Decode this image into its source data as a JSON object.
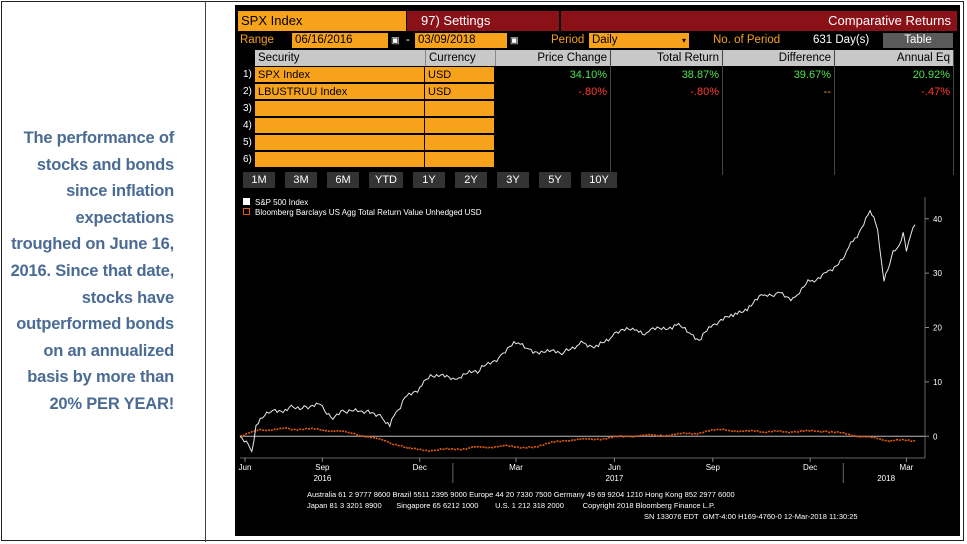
{
  "caption": "The performance of stocks and bonds since inflation expectations troughed on June 16, 2016.  Since that date, stocks have outperformed bonds on an annualized basis by more than 20% PER YEAR!",
  "header": {
    "ticker": "SPX Index",
    "settings": "97) Settings",
    "title": "Comparative Returns"
  },
  "options": {
    "range_label": "Range",
    "start_date": "06/16/2016",
    "dash": "-",
    "end_date": "03/09/2018",
    "period_label": "Period",
    "period_value": "Daily",
    "num_period_label": "No. of Period",
    "num_period_value": "631 Day(s)",
    "table_button": "Table"
  },
  "table": {
    "headers": [
      "Security",
      "Currency",
      "Price Change",
      "Total Return",
      "Difference",
      "Annual Eq"
    ],
    "row_numbers": [
      "1)",
      "2)",
      "3)",
      "4)",
      "5)",
      "6)"
    ],
    "rows": [
      {
        "security": "SPX Index",
        "currency": "USD",
        "price_change": "34.10%",
        "total_return": "38.87%",
        "difference": "39.67%",
        "annual_eq": "20.92%"
      },
      {
        "security": "LBUSTRUU Index",
        "currency": "USD",
        "price_change": "-.80%",
        "total_return": "-.80%",
        "difference": "--",
        "annual_eq": "-.47%"
      }
    ]
  },
  "range_buttons": [
    "1M",
    "3M",
    "6M",
    "YTD",
    "1Y",
    "2Y",
    "3Y",
    "5Y",
    "10Y"
  ],
  "colors": {
    "orange": "#f7a21b",
    "maroon": "#8b1118",
    "green": "#4ce24c",
    "red": "#ff3a2e",
    "spx_line": "#e8e8e8",
    "bond_line": "#e05a10",
    "caption": "#4a6b94"
  },
  "chart_data": {
    "type": "line",
    "legend": [
      "S&P 500 Index",
      "Bloomberg Barclays US Agg Total Return Value Unhedged USD"
    ],
    "x_ticks": [
      "Jun",
      "Sep",
      "Dec",
      "Mar",
      "Jun",
      "Sep",
      "Dec",
      "Mar"
    ],
    "year_labels": [
      "2016",
      "2017",
      "2018"
    ],
    "y_ticks": [
      "0",
      "10",
      "20",
      "30",
      "40"
    ],
    "ylim": [
      -4,
      44
    ],
    "x_range": [
      "2016-06-16",
      "2018-03-09"
    ],
    "series": [
      {
        "name": "S&P 500 Index",
        "x": [
          "2016-06-16",
          "2016-06-24",
          "2016-06-27",
          "2016-07-01",
          "2016-07-15",
          "2016-08-01",
          "2016-08-15",
          "2016-09-01",
          "2016-09-09",
          "2016-09-22",
          "2016-10-10",
          "2016-10-25",
          "2016-11-03",
          "2016-11-09",
          "2016-11-15",
          "2016-12-01",
          "2016-12-13",
          "2017-01-03",
          "2017-01-26",
          "2017-02-15",
          "2017-03-01",
          "2017-03-15",
          "2017-04-13",
          "2017-05-01",
          "2017-05-17",
          "2017-06-01",
          "2017-06-20",
          "2017-07-01",
          "2017-07-27",
          "2017-08-10",
          "2017-08-21",
          "2017-09-01",
          "2017-09-20",
          "2017-10-05",
          "2017-10-20",
          "2017-11-01",
          "2017-11-15",
          "2017-12-01",
          "2017-12-18",
          "2018-01-02",
          "2018-01-12",
          "2018-01-26",
          "2018-02-02",
          "2018-02-08",
          "2018-02-15",
          "2018-02-20",
          "2018-02-26",
          "2018-03-01",
          "2018-03-05",
          "2018-03-09"
        ],
        "values": [
          0,
          -1.6,
          -2.8,
          2,
          4.5,
          5.3,
          5.6,
          5.6,
          3.5,
          4.5,
          4.2,
          4,
          1.8,
          4.5,
          6.5,
          9,
          11,
          10.5,
          12,
          15,
          17,
          16,
          15,
          17.5,
          16.5,
          19,
          19.5,
          19,
          20.5,
          19,
          17.8,
          20.5,
          22,
          24,
          26,
          26.5,
          25.5,
          28.5,
          30.5,
          33,
          36.5,
          41.5,
          38,
          28.5,
          33,
          34.5,
          37.5,
          34,
          37,
          38.9
        ]
      },
      {
        "name": "Bloomberg Barclays US Agg Total Return Value Unhedged USD",
        "x": [
          "2016-06-16",
          "2016-07-06",
          "2016-08-01",
          "2016-09-01",
          "2016-10-01",
          "2016-11-01",
          "2016-11-20",
          "2016-12-15",
          "2017-01-15",
          "2017-02-15",
          "2017-03-15",
          "2017-04-15",
          "2017-05-15",
          "2017-06-15",
          "2017-07-15",
          "2017-08-15",
          "2017-09-08",
          "2017-10-15",
          "2017-11-15",
          "2017-12-15",
          "2018-01-15",
          "2018-02-15",
          "2018-03-09"
        ],
        "values": [
          0,
          1.2,
          1.4,
          1.2,
          0.5,
          -1,
          -2.3,
          -2.6,
          -2.2,
          -1.8,
          -2,
          -0.8,
          -0.5,
          0,
          0.2,
          0.5,
          1.2,
          0.8,
          0.8,
          1,
          0,
          -0.8,
          -0.8
        ]
      }
    ]
  },
  "footer": {
    "line1": "Australia 61 2 9777 8600 Brazil 5511 2395 9000 Europe 44 20 7330 7500 Germany 49 69 9204 1210 Hong Kong 852 2977 6000",
    "line2": "Japan 81 3 3201 8900       Singapore 65 6212 1000        U.S. 1 212 318 2000         Copyright 2018 Bloomberg Finance L.P.",
    "line3": "SN 133076 EDT  GMT-4:00 H169-4760-0 12-Mar-2018 11:30:25"
  }
}
